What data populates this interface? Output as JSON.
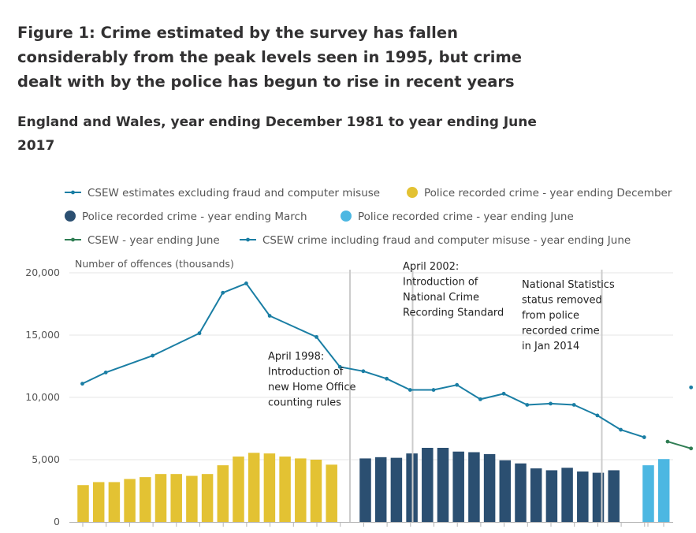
{
  "title": "Figure 1: Crime estimated by the survey has fallen considerably from the peak levels seen in 1995, but crime dealt with by the police has begun to rise in recent years",
  "subtitle": "England and Wales, year ending December 1981 to year ending June 2017",
  "chart_data": {
    "type": "bar",
    "ylabel": "Number of offences (thousands)",
    "ylim": [
      0,
      20000
    ],
    "yticks": [
      "0",
      "5,000",
      "10,000",
      "15,000",
      "20,000"
    ],
    "grid": true,
    "legend_position": "top",
    "colors": {
      "csew_line": "#1a7ea4",
      "prc_december": "#e3c233",
      "prc_march": "#2b4f71",
      "prc_june": "#4cb7e2",
      "csew_june": "#2f7d53",
      "csew_fraud": "#1a7ea4",
      "grid": "#e5e5e5",
      "separator": "#cccccc"
    },
    "legend": [
      {
        "label": "CSEW estimates excluding fraud and computer misuse",
        "kind": "line",
        "color": "#1a7ea4"
      },
      {
        "label": "Police recorded crime - year ending December",
        "kind": "dot",
        "color": "#e3c233"
      },
      {
        "label": "Police recorded crime - year ending March",
        "kind": "dot",
        "color": "#2b4f71"
      },
      {
        "label": "Police recorded crime - year ending June",
        "kind": "dot",
        "color": "#4cb7e2"
      },
      {
        "label": "CSEW - year ending June",
        "kind": "line",
        "color": "#2f7d53"
      },
      {
        "label": "CSEW crime including fraud and computer misuse - year ending June",
        "kind": "line",
        "color": "#1a7ea4"
      }
    ],
    "series": [
      {
        "name": "Police recorded crime - year ending December",
        "type": "bar",
        "values": [
          2960,
          3200,
          3200,
          3450,
          3600,
          3850,
          3850,
          3700,
          3850,
          4550,
          5250,
          5550,
          5500,
          5250,
          5100,
          5000,
          4600
        ]
      },
      {
        "name": "Police recorded crime - year ending March",
        "type": "bar",
        "values": [
          5100,
          5200,
          5150,
          5500,
          5950,
          5950,
          5650,
          5600,
          5450,
          4950,
          4700,
          4300,
          4150,
          4350,
          4050,
          3950,
          4150
        ]
      },
      {
        "name": "Police recorded crime - year ending June",
        "type": "bar",
        "values": [
          4550,
          5050
        ]
      },
      {
        "name": "CSEW estimates excluding fraud and computer misuse",
        "type": "line",
        "points": [
          [
            0,
            11100
          ],
          [
            1,
            12000
          ],
          [
            3,
            13350
          ],
          [
            5,
            15150
          ],
          [
            6,
            18400
          ],
          [
            7,
            19150
          ],
          [
            8,
            16550
          ],
          [
            10,
            14850
          ],
          [
            11,
            12450
          ],
          [
            12,
            12100
          ],
          [
            13,
            11500
          ],
          [
            14,
            10600
          ],
          [
            15,
            10600
          ],
          [
            16,
            11000
          ],
          [
            17,
            9850
          ],
          [
            18,
            10300
          ],
          [
            19,
            9400
          ],
          [
            20,
            9500
          ],
          [
            21,
            9400
          ],
          [
            22,
            8550
          ],
          [
            23,
            7400
          ],
          [
            24,
            6800
          ]
        ]
      },
      {
        "name": "CSEW - year ending June",
        "type": "line",
        "points": [
          [
            25,
            6450
          ],
          [
            26,
            5900
          ]
        ]
      },
      {
        "name": "CSEW crime including fraud and computer misuse - year ending June",
        "type": "line",
        "points": [
          [
            26,
            10800
          ]
        ]
      }
    ],
    "annotations": [
      {
        "lines": [
          "April 1998:",
          "Introduction of",
          "new Home Office",
          "counting rules"
        ]
      },
      {
        "lines": [
          "April 2002:",
          "Introduction of",
          "National Crime",
          "Recording Standard"
        ]
      },
      {
        "lines": [
          "National Statistics",
          "status removed",
          "from police",
          "recorded crime",
          "in Jan 2014"
        ]
      }
    ]
  }
}
